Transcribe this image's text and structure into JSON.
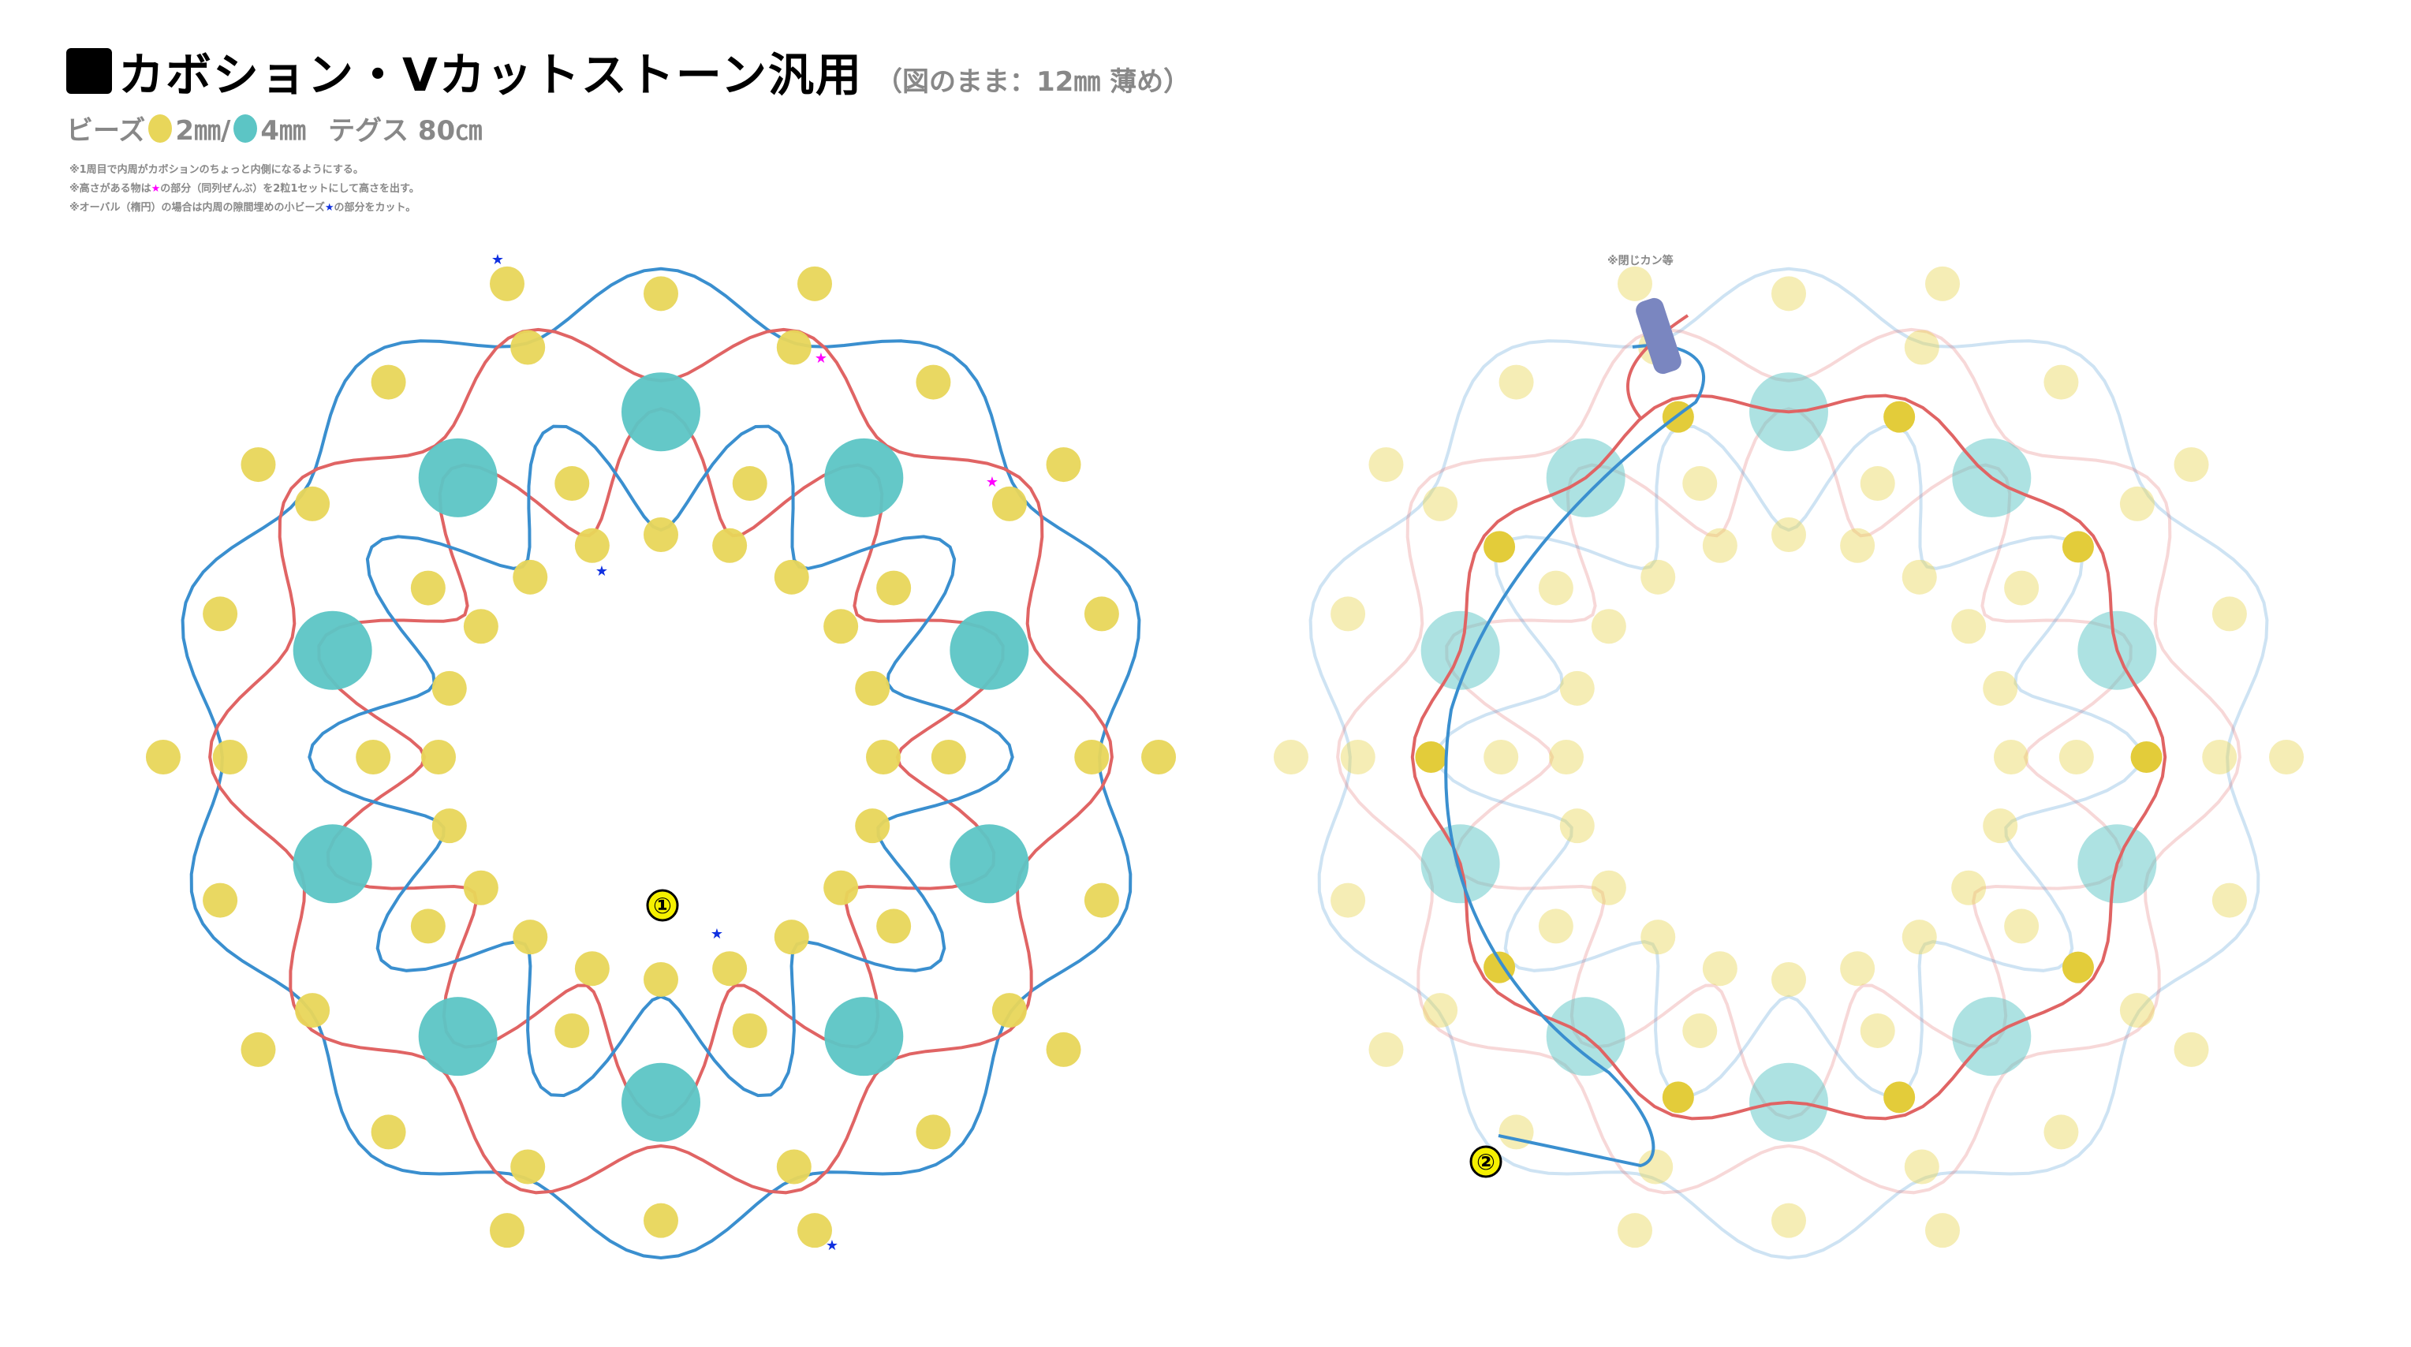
{
  "header": {
    "title": "カボション・Vカットストーン汎用",
    "subtitle": "（図のまま：12㎜ 薄め）"
  },
  "legend": {
    "beads_label": "ビーズ",
    "small_bead": "2㎜/",
    "large_bead": "4㎜",
    "thread": "テグス 80㎝"
  },
  "notes": [
    {
      "text_before": "※1周目で内周がカボションのちょっと内側になるようにする。",
      "star": "",
      "text_after": ""
    },
    {
      "text_before": "※高さがある物は",
      "star": "★",
      "star_color": "#ff00ff",
      "text_after": "の部分（同列ぜんぶ）を2粒1セットにして高さを出す。"
    },
    {
      "text_before": "※オーバル（楕円）の場合は内周の隙間埋めの小ビーズ",
      "star": "★",
      "star_color": "#1030e0",
      "text_after": "の部分をカット。"
    }
  ],
  "diagram_left": {
    "step_label": "①"
  },
  "diagram_right": {
    "step_label": "②",
    "clasp_note": "※閉じカン等"
  },
  "colors": {
    "small_bead": "#e8d65a",
    "large_bead": "#5cc5c5",
    "thread_blue": "#3a8fcf",
    "thread_red": "#e06464",
    "clasp": "#7a86c0",
    "star_magenta": "#ff00ff",
    "star_blue": "#1030e0"
  }
}
